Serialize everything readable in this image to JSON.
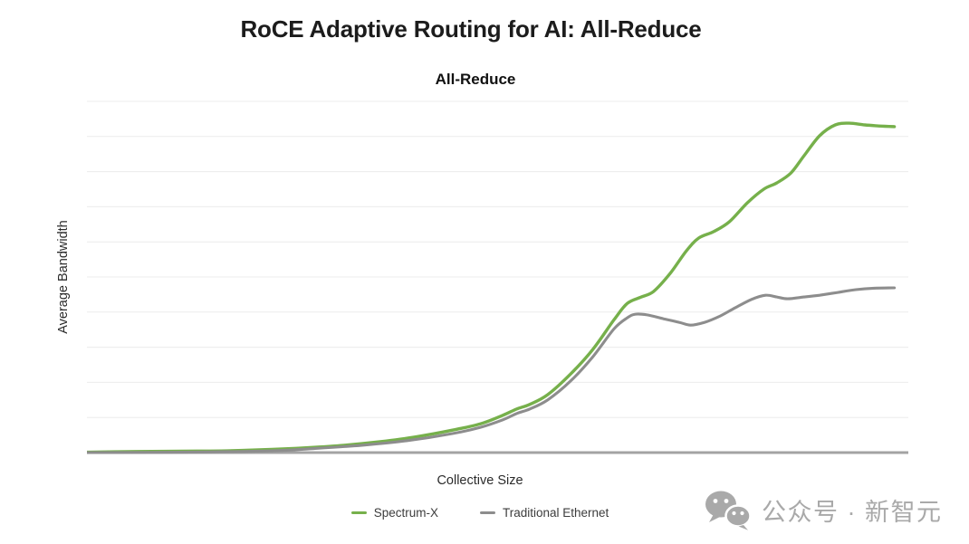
{
  "page": {
    "background": "#ffffff"
  },
  "header": {
    "title": "RoCE Adaptive Routing for AI: All-Reduce"
  },
  "chart": {
    "subtitle": "All-Reduce",
    "x_axis_label": "Collective Size",
    "y_axis_label": "Average Bandwidth"
  },
  "chart_data": {
    "type": "line",
    "title": "All-Reduce",
    "xlabel": "Collective Size",
    "ylabel": "Average Bandwidth",
    "xlim": [
      0,
      100
    ],
    "ylim": [
      0,
      100
    ],
    "axis_note": "axes have no numeric tick labels; point values are normalized 0-100 (x = relative collective size position, y = relative average bandwidth)",
    "grid": {
      "horizontal_lines": 10,
      "color": "#ececec",
      "baseline_color": "#a3a3a3",
      "baseline_width": 3,
      "vertical_lines": 0
    },
    "legend_position": "bottom-center",
    "series": [
      {
        "name": "Spectrum-X",
        "color": "#76b04b",
        "stroke_width": 3.4,
        "points": [
          [
            0,
            0.1
          ],
          [
            6,
            0.3
          ],
          [
            11.5,
            0.4
          ],
          [
            17,
            0.5
          ],
          [
            22.5,
            0.9
          ],
          [
            26.9,
            1.4
          ],
          [
            31.3,
            2.1
          ],
          [
            35.7,
            3.1
          ],
          [
            40.1,
            4.5
          ],
          [
            44.5,
            6.4
          ],
          [
            47.9,
            8.2
          ],
          [
            50.6,
            10.6
          ],
          [
            52.3,
            12.4
          ],
          [
            53.9,
            13.7
          ],
          [
            56.1,
            16.5
          ],
          [
            58.9,
            22.4
          ],
          [
            61.6,
            29.4
          ],
          [
            64.2,
            37.9
          ],
          [
            65.8,
            42.5
          ],
          [
            67.5,
            44.3
          ],
          [
            69,
            45.9
          ],
          [
            71,
            51
          ],
          [
            73,
            57.5
          ],
          [
            74.5,
            61.1
          ],
          [
            76.3,
            62.9
          ],
          [
            78.2,
            65.7
          ],
          [
            80.4,
            71.1
          ],
          [
            82.4,
            75
          ],
          [
            84,
            76.8
          ],
          [
            85.7,
            79.6
          ],
          [
            87.3,
            84.5
          ],
          [
            89.2,
            90.2
          ],
          [
            91.1,
            93.3
          ],
          [
            92.8,
            93.8
          ],
          [
            94.7,
            93.3
          ],
          [
            96.4,
            93
          ],
          [
            98.3,
            92.8
          ]
        ]
      },
      {
        "name": "Traditional Ethernet",
        "color": "#8d8d8d",
        "stroke_width": 3.1,
        "points": [
          [
            0,
            0
          ],
          [
            11.5,
            0.1
          ],
          [
            22.5,
            0.5
          ],
          [
            28,
            1.2
          ],
          [
            33.5,
            2.1
          ],
          [
            39,
            3.4
          ],
          [
            44.5,
            5.4
          ],
          [
            47.9,
            7.2
          ],
          [
            50.6,
            9.3
          ],
          [
            52.3,
            11.1
          ],
          [
            53.9,
            12.4
          ],
          [
            56.1,
            15
          ],
          [
            58.9,
            20.4
          ],
          [
            61.6,
            27.3
          ],
          [
            64.2,
            35.3
          ],
          [
            65.8,
            38.4
          ],
          [
            66.8,
            39.4
          ],
          [
            68.2,
            39.2
          ],
          [
            70.2,
            38.1
          ],
          [
            72.1,
            37.1
          ],
          [
            73.5,
            36.3
          ],
          [
            75.2,
            37.1
          ],
          [
            77.1,
            38.9
          ],
          [
            78.9,
            41.2
          ],
          [
            80.9,
            43.6
          ],
          [
            82.6,
            44.8
          ],
          [
            84,
            44.3
          ],
          [
            85.3,
            43.8
          ],
          [
            87.3,
            44.3
          ],
          [
            89.2,
            44.8
          ],
          [
            91.4,
            45.6
          ],
          [
            93.6,
            46.4
          ],
          [
            95.8,
            46.8
          ],
          [
            98.3,
            46.9
          ]
        ]
      }
    ]
  },
  "watermark": {
    "icon": "wechat-icon",
    "text": "公众号 · 新智元",
    "color": "#a9a9a9"
  }
}
